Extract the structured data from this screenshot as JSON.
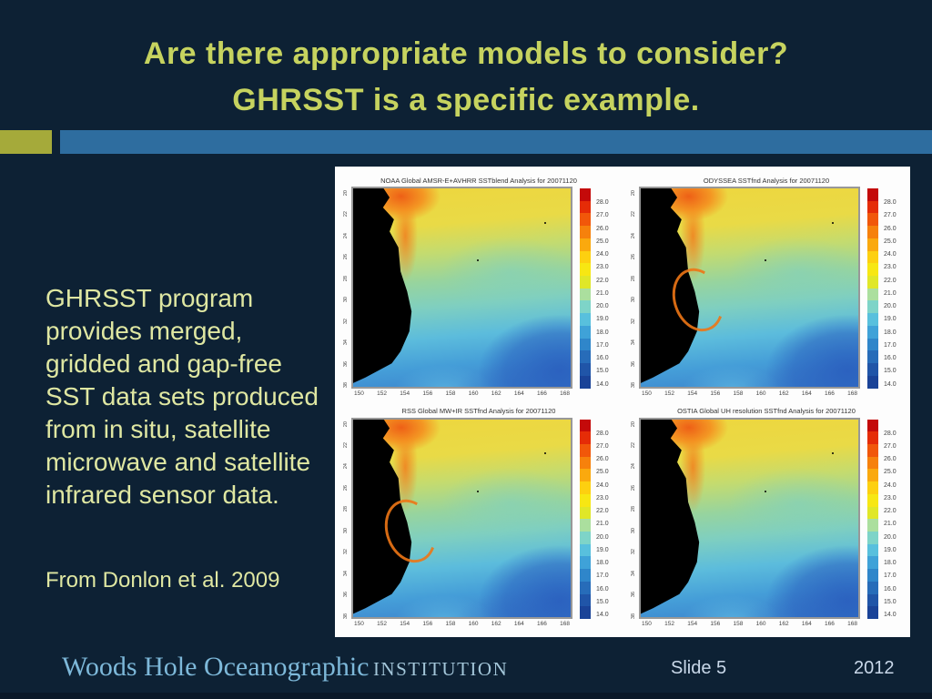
{
  "slide": {
    "title_line1": "Are there appropriate models to consider?",
    "title_line2": "GHRSST is a specific example.",
    "body_lines": [
      "GHRSST program",
      "provides merged,",
      "gridded and gap-free",
      "SST data sets produced",
      "from in situ, satellite",
      "microwave and satellite",
      "infrared sensor data."
    ],
    "citation": "From Donlon et al. 2009",
    "footer": {
      "brand": "Woods Hole Oceanographic",
      "brand_suffix": "INSTITUTION",
      "slide_label": "Slide 5",
      "year": "2012"
    }
  },
  "figure": {
    "maps": [
      {
        "title": "NOAA Global AMSR-E+AVHRR SSTblend Analysis for 20071120"
      },
      {
        "title": "ODYSSEA SSTfnd Analysis for 20071120"
      },
      {
        "title": "RSS Global MW+IR SSTfnd Analysis for 20071120"
      },
      {
        "title": "OSTIA Global UH resolution SSTfnd Analysis for 20071120"
      }
    ],
    "x_ticks": [
      "150",
      "152",
      "154",
      "156",
      "158",
      "160",
      "162",
      "164",
      "166",
      "168"
    ],
    "y_ticks": [
      "20",
      "22",
      "24",
      "26",
      "28",
      "30",
      "32",
      "34",
      "36",
      "38"
    ],
    "colorbar": {
      "labels": [
        "28.0",
        "27.0",
        "26.0",
        "25.0",
        "24.0",
        "23.0",
        "22.0",
        "21.0",
        "20.0",
        "19.0",
        "18.0",
        "17.0",
        "16.0",
        "15.0",
        "14.0"
      ],
      "colors": [
        "#c40a0a",
        "#e52c07",
        "#f1570a",
        "#f6810c",
        "#faa90e",
        "#fdd010",
        "#f7e713",
        "#e0e728",
        "#abdf9e",
        "#7ed4c8",
        "#58c0dd",
        "#3fa2d8",
        "#2f86ca",
        "#276cb9",
        "#2055a8",
        "#1a4398"
      ]
    }
  },
  "colors": {
    "background": "#0d2134",
    "title_text": "#c6d35f",
    "body_text": "#dfe7a2",
    "accent_olive": "#a5aa3a",
    "accent_blue": "#2e6d9f",
    "brand_blue": "#7db8d9"
  }
}
